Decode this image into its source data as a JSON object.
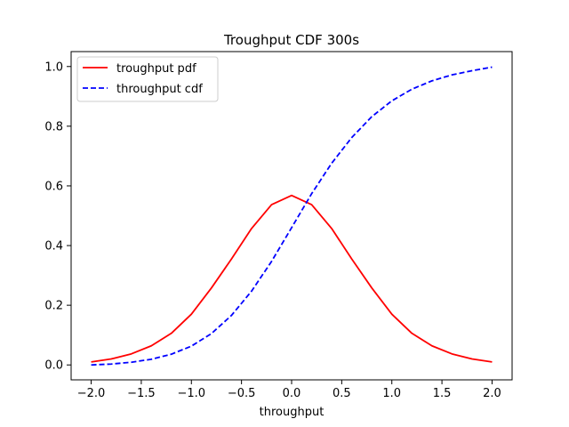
{
  "chart_data": {
    "type": "line",
    "title": "Troughput CDF 300s",
    "xlabel": "throughput",
    "ylabel": "",
    "xlim": [
      -2.2,
      2.2
    ],
    "ylim": [
      -0.05,
      1.05
    ],
    "xticks": [
      -2.0,
      -1.5,
      -1.0,
      -0.5,
      0.0,
      0.5,
      1.0,
      1.5,
      2.0
    ],
    "xtick_labels": [
      "−2.0",
      "−1.5",
      "−1.0",
      "−0.5",
      "0.0",
      "0.5",
      "1.0",
      "1.5",
      "2.0"
    ],
    "yticks": [
      0.0,
      0.2,
      0.4,
      0.6,
      0.8,
      1.0
    ],
    "ytick_labels": [
      "0.0",
      "0.2",
      "0.4",
      "0.6",
      "0.8",
      "1.0"
    ],
    "grid": false,
    "legend_position": "top-left",
    "series": [
      {
        "name": "troughput pdf",
        "color": "#ff0000",
        "style": "solid",
        "x": [
          -2.0,
          -1.8,
          -1.6,
          -1.4,
          -1.2,
          -1.0,
          -0.8,
          -0.6,
          -0.4,
          -0.2,
          0.0,
          0.2,
          0.4,
          0.6,
          0.8,
          1.0,
          1.2,
          1.4,
          1.6,
          1.8,
          2.0
        ],
        "y": [
          0.01,
          0.02,
          0.037,
          0.064,
          0.106,
          0.17,
          0.258,
          0.355,
          0.457,
          0.537,
          0.568,
          0.537,
          0.457,
          0.355,
          0.258,
          0.17,
          0.106,
          0.064,
          0.037,
          0.02,
          0.01
        ]
      },
      {
        "name": "throughput cdf",
        "color": "#0000ff",
        "style": "dashed",
        "x": [
          -2.0,
          -1.8,
          -1.6,
          -1.4,
          -1.2,
          -1.0,
          -0.8,
          -0.6,
          -0.4,
          -0.2,
          0.0,
          0.2,
          0.4,
          0.6,
          0.8,
          1.0,
          1.2,
          1.4,
          1.6,
          1.8,
          2.0
        ],
        "y": [
          0.0,
          0.003,
          0.009,
          0.019,
          0.036,
          0.063,
          0.105,
          0.166,
          0.247,
          0.347,
          0.46,
          0.574,
          0.676,
          0.762,
          0.832,
          0.885,
          0.924,
          0.952,
          0.972,
          0.986,
          0.998
        ]
      }
    ]
  }
}
